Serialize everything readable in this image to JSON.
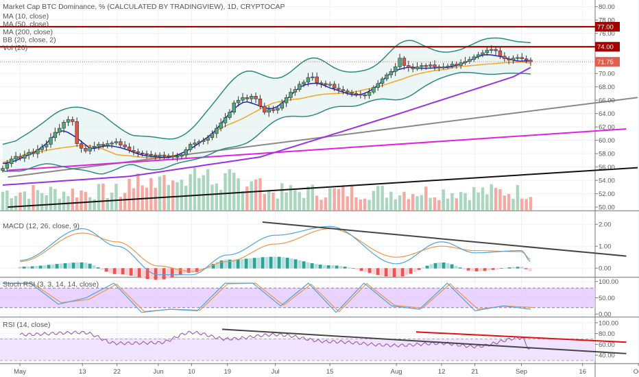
{
  "window": {
    "title": "Market Cap BTC Dominance, % (CALCULATED BY TRADINGVIEW), 1D, CRYPTOCAP"
  },
  "colors": {
    "up": "#53a67a",
    "down": "#d9574a",
    "ma10": "#1f1fc8",
    "ma50": "#f5a623",
    "ma200": "#9b30e0",
    "bb": "#2a8a80",
    "bb_fill": "#e6f4f3",
    "resistance": "#a30000",
    "last_price": "#e06050",
    "trend_gray": "#888888",
    "trend_black": "#111111",
    "trend_magenta": "#e020e0",
    "macd": "#4aa3df",
    "signal": "#f0944a",
    "stoch_band": "#e3c8ff",
    "rsi": "#9b59b6",
    "rsi_band": "#efe3ff",
    "div_line": "#444444",
    "div_red": "#e01010"
  },
  "chart_data": [
    {
      "type": "candlestick",
      "pane": "price",
      "title": "Market Cap BTC Dominance, % (CALCULATED BY TRADINGVIEW), 1D, CRYPTOCAP",
      "legend": [
        "MA (10, close)",
        "MA (50, close)",
        "MA (200, close)",
        "BB (20, close, 2)",
        "Vol (20)"
      ],
      "ylabel": "%",
      "ylim": [
        49.5,
        81
      ],
      "yticks": [
        "80.00",
        "78.00",
        "76.00",
        "70.00",
        "68.00",
        "66.00",
        "64.00",
        "62.00",
        "60.00",
        "58.00",
        "56.00",
        "54.00",
        "52.00",
        "50.00"
      ],
      "x_ticks": [
        "May",
        "13",
        "22",
        "Jun",
        "10",
        "19",
        "Jul",
        "15",
        "Aug",
        "12",
        "21",
        "Sep",
        "16",
        "Oct"
      ],
      "close": [
        55.8,
        56.5,
        57.2,
        57.6,
        57.3,
        57.8,
        58.2,
        58.0,
        58.6,
        59.0,
        59.4,
        60.4,
        61.2,
        61.8,
        62.7,
        63.1,
        62.8,
        59.5,
        58.8,
        58.4,
        58.9,
        59.1,
        59.4,
        59.2,
        59.5,
        59.6,
        59.8,
        59.3,
        59.0,
        58.5,
        58.3,
        58.1,
        58.0,
        57.9,
        57.8,
        57.6,
        57.8,
        57.6,
        57.7,
        57.5,
        57.6,
        57.8,
        58.6,
        59.4,
        59.6,
        59.8,
        60.0,
        60.4,
        61.0,
        61.8,
        62.6,
        63.4,
        64.2,
        65.6,
        66.0,
        66.4,
        66.2,
        66.6,
        66.2,
        65.1,
        64.2,
        64.6,
        64.5,
        64.8,
        65.6,
        66.4,
        67.2,
        67.6,
        68.4,
        68.7,
        69.4,
        69.5,
        68.6,
        68.5,
        68.3,
        68.4,
        67.8,
        67.6,
        67.4,
        67.2,
        67.0,
        66.9,
        66.8,
        66.7,
        67.2,
        67.9,
        68.5,
        69.2,
        69.8,
        70.3,
        71.0,
        72.3,
        71.2,
        70.9,
        70.7,
        71.0,
        71.2,
        71.1,
        71.3,
        71.0,
        70.9,
        71.0,
        71.1,
        71.4,
        71.2,
        71.6,
        71.8,
        72.1,
        72.5,
        72.8,
        73.1,
        73.5,
        73.6,
        73.4,
        72.6,
        72.2,
        72.0,
        72.3,
        72.4,
        72.2,
        72.0,
        71.75
      ],
      "series": [
        {
          "name": "MA (10, close)",
          "values_at_ticks": {
            "May": 55.3,
            "Jun": 57.5,
            "Jul": 63.7,
            "Aug": 67.3,
            "Sep": 72.0,
            "end": 72.6
          }
        },
        {
          "name": "MA (50, close)",
          "values_at_ticks": {
            "May": 54.5,
            "Jun": 58.3,
            "Jul": 60.0,
            "Aug": 66.8,
            "Sep": 71.2,
            "end": 72.0
          }
        },
        {
          "name": "MA (200, close)",
          "values_at_ticks": {
            "May": 53.3,
            "Jun": 54.6,
            "Jul": 57.5,
            "Aug": 63.6,
            "Sep": 69.5,
            "end": 70.9
          }
        },
        {
          "name": "BB upper",
          "values_at_ticks": {
            "May": 58.0,
            "Jun": 61.6,
            "Jul": 66.2,
            "Aug": 71.0,
            "Sep": 73.8,
            "end": 73.4
          }
        },
        {
          "name": "BB lower",
          "values_at_ticks": {
            "May": 52.5,
            "Jun": 56.4,
            "Jul": 55.7,
            "Aug": 63.5,
            "Sep": 69.9,
            "end": 70.8
          }
        }
      ],
      "horizontal_lines": [
        {
          "label": "77.00",
          "value": 77.0
        },
        {
          "label": "74.00",
          "value": 74.0
        },
        {
          "label": "71.75",
          "value": 71.75,
          "style": "dotted-last-price"
        }
      ],
      "trendlines": [
        {
          "name": "gray-support",
          "from": {
            "date": "Apr 28",
            "value": 54.5
          },
          "to": {
            "date": "Oct 4",
            "value": 66.4
          }
        },
        {
          "name": "black-support",
          "from": {
            "date": "Apr 28",
            "value": 50.0
          },
          "to": {
            "date": "Oct 4",
            "value": 55.9
          }
        },
        {
          "name": "magenta-projection",
          "from": {
            "date": "Apr 28",
            "value": 55.5
          },
          "to": {
            "date": "Sep 28",
            "value": 61.7
          }
        }
      ],
      "volume": {
        "name": "Vol (20)",
        "relative_levels": "bars 0–1 of pane height",
        "note": "alternating green/red volume bars, shape only"
      }
    },
    {
      "type": "line",
      "pane": "macd",
      "title": "MACD (12, 26, close, 9)",
      "ylim": [
        -0.4,
        2.6
      ],
      "yticks": [
        "2.00",
        "1.00",
        "0.00"
      ],
      "series": [
        {
          "name": "MACD",
          "values_at_ticks": {
            "May": 0.35,
            "13": 1.8,
            "22": 1.0,
            "Jun": -0.3,
            "10": -0.3,
            "19": 0.6,
            "Jul": 1.5,
            "15": 1.9,
            "Aug": 0.2,
            "12": 1.2,
            "21": 0.7,
            "Sep": 0.8,
            "end": 0.3
          }
        },
        {
          "name": "Signal",
          "values_at_ticks": {
            "May": 0.3,
            "13": 1.6,
            "22": 1.2,
            "Jun": 0.1,
            "10": -0.15,
            "19": 0.3,
            "Jul": 1.1,
            "15": 1.8,
            "Aug": 0.5,
            "12": 1.0,
            "21": 0.8,
            "Sep": 0.75,
            "end": 0.4
          }
        }
      ],
      "trendline": {
        "from": {
          "date": "Jun 30",
          "value": 2.1
        },
        "to": {
          "date": "Sep 28",
          "value": 0.55
        }
      }
    },
    {
      "type": "line",
      "pane": "stoch_rsi",
      "title": "Stoch RSI (3, 3, 14, 14, close)",
      "ylim": [
        -8,
        112
      ],
      "yticks": [
        "100.00",
        "50.00",
        "0.00"
      ],
      "bands": [
        20,
        80
      ],
      "series": [
        {
          "name": "K",
          "peaks_troughs": [
            95,
            95,
            30,
            50,
            95,
            5,
            15,
            10,
            95,
            95,
            25,
            95,
            5,
            95,
            25,
            15,
            95,
            10,
            25,
            15
          ]
        },
        {
          "name": "D",
          "peaks_troughs": [
            95,
            93,
            35,
            45,
            92,
            8,
            15,
            12,
            93,
            95,
            27,
            92,
            7,
            94,
            27,
            18,
            93,
            15,
            25,
            20
          ]
        }
      ]
    },
    {
      "type": "line",
      "pane": "rsi",
      "title": "RSI (14, close)",
      "ylim": [
        25,
        110
      ],
      "yticks": [
        "100.00",
        "80.00",
        "60.00",
        "40.00"
      ],
      "bands": [
        30,
        70
      ],
      "series": [
        {
          "name": "RSI",
          "values_at_ticks": {
            "May": 78,
            "13": 82,
            "22": 62,
            "Jun": 63,
            "10": 82,
            "19": 70,
            "Jul": 78,
            "15": 65,
            "Aug": 58,
            "12": 62,
            "21": 56,
            "Sep": 72,
            "end": 50
          }
        }
      ],
      "trendlines": [
        {
          "name": "gray-divergence",
          "from": {
            "date": "Jun 20",
            "value": 88
          },
          "to": {
            "date": "Sep 28",
            "value": 43
          }
        },
        {
          "name": "red-divergence",
          "from": {
            "date": "Aug 7",
            "value": 83
          },
          "to": {
            "date": "Sep 28",
            "value": 64
          }
        }
      ]
    }
  ]
}
